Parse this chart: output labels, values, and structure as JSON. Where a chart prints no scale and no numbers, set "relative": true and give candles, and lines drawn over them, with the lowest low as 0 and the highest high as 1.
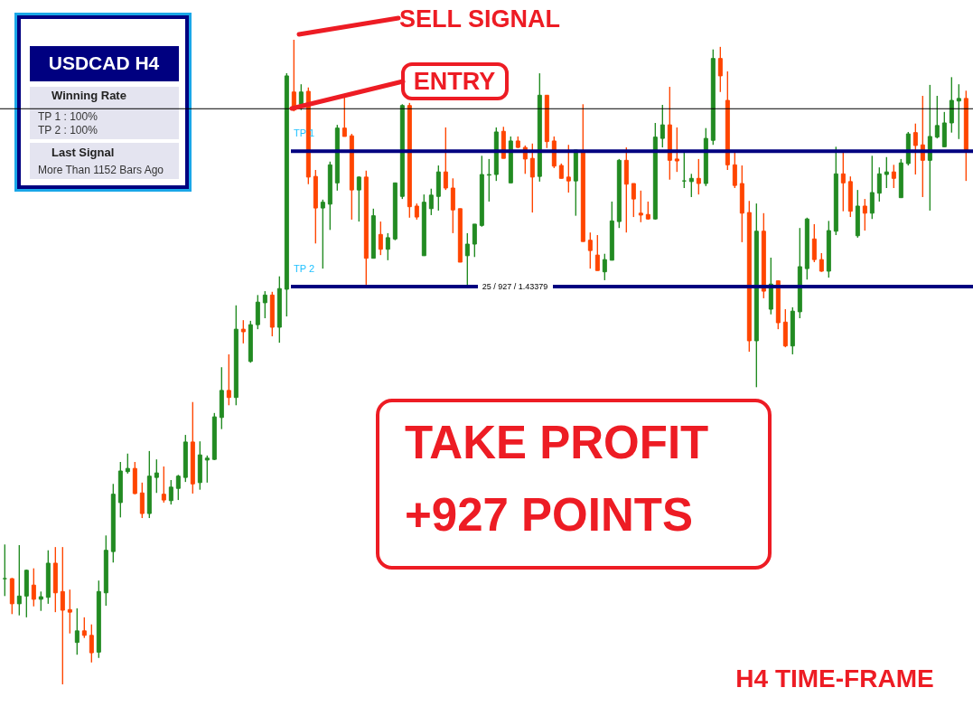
{
  "chart_data": {
    "type": "candlestick",
    "relative": true,
    "categories": [
      null,
      null,
      null,
      null,
      null,
      null,
      null,
      null,
      null,
      null,
      null,
      null,
      null,
      null,
      null,
      null,
      null,
      null,
      null,
      null,
      null,
      null,
      null,
      null,
      null,
      null,
      null,
      null,
      null,
      null,
      null,
      null,
      null,
      null,
      null,
      null,
      null,
      null,
      null,
      null,
      null,
      null,
      null,
      null,
      null,
      null,
      null,
      null,
      null,
      null,
      null,
      null,
      null,
      null,
      null,
      null,
      null,
      null,
      null,
      null,
      null,
      null,
      null,
      null,
      null,
      null,
      null,
      null,
      null,
      null,
      null,
      null,
      null,
      null,
      null,
      null,
      null,
      null,
      null,
      null,
      null,
      null,
      null,
      null,
      null,
      null,
      null,
      null,
      null,
      null,
      null,
      null,
      null,
      null,
      null,
      null,
      null,
      null,
      null,
      null,
      null,
      null,
      null,
      null,
      null,
      null,
      null,
      null,
      null,
      null,
      null,
      null,
      null,
      null,
      null,
      null,
      null,
      null,
      null,
      null,
      null,
      null,
      null,
      null,
      null,
      null,
      null,
      null,
      null,
      null,
      null,
      null,
      null,
      null
    ],
    "ohlc": [
      [
        0.164,
        0.217,
        0.137,
        0.164
      ],
      [
        0.164,
        0.165,
        0.109,
        0.125
      ],
      [
        0.125,
        0.216,
        0.107,
        0.137
      ],
      [
        0.137,
        0.178,
        0.104,
        0.177
      ],
      [
        0.154,
        0.18,
        0.121,
        0.132
      ],
      [
        0.132,
        0.144,
        0.114,
        0.136
      ],
      [
        0.135,
        0.208,
        0.125,
        0.188
      ],
      [
        0.188,
        0.213,
        0.112,
        0.142
      ],
      [
        0.144,
        0.213,
        0,
        0.115
      ],
      [
        0.116,
        0.147,
        0.079,
        0.112
      ],
      [
        0.065,
        0.118,
        0.046,
        0.083
      ],
      [
        0.083,
        0.104,
        0.072,
        0.076
      ],
      [
        0.076,
        0.093,
        0.034,
        0.049
      ],
      [
        0.05,
        0.161,
        0.041,
        0.144
      ],
      [
        0.142,
        0.231,
        0.122,
        0.208
      ],
      [
        0.206,
        0.311,
        0.189,
        0.295
      ],
      [
        0.282,
        0.345,
        0.259,
        0.331
      ],
      [
        0.33,
        0.358,
        0.327,
        0.335
      ],
      [
        0.335,
        0.345,
        0.295,
        0.296
      ],
      [
        0.297,
        0.313,
        0.258,
        0.265
      ],
      [
        0.265,
        0.362,
        0.258,
        0.323
      ],
      [
        0.321,
        0.349,
        0.297,
        0.328
      ],
      [
        0.295,
        0.338,
        0.282,
        0.286
      ],
      [
        0.285,
        0.317,
        0.279,
        0.306
      ],
      [
        0.304,
        0.325,
        0.286,
        0.323
      ],
      [
        0.321,
        0.387,
        0.314,
        0.376
      ],
      [
        0.376,
        0.438,
        0.296,
        0.311
      ],
      [
        0.313,
        0.377,
        0.302,
        0.356
      ],
      [
        0.348,
        0.355,
        0.313,
        0.351
      ],
      [
        0.349,
        0.421,
        0.348,
        0.415
      ],
      [
        0.414,
        0.492,
        0.396,
        0.456
      ],
      [
        0.456,
        0.512,
        0.433,
        0.445
      ],
      [
        0.445,
        0.588,
        0.433,
        0.551
      ],
      [
        0.551,
        0.565,
        0.529,
        0.547
      ],
      [
        0.501,
        0.564,
        0.499,
        0.558
      ],
      [
        0.558,
        0.604,
        0.551,
        0.593
      ],
      [
        0.592,
        0.61,
        0.568,
        0.604
      ],
      [
        0.604,
        0.609,
        0.54,
        0.554
      ],
      [
        0.554,
        0.633,
        0.53,
        0.614
      ],
      [
        0.613,
        0.948,
        0.571,
        0.944
      ],
      [
        0.919,
        1,
        0.889,
        0.891
      ],
      [
        0.9,
        0.931,
        0.891,
        0.919
      ],
      [
        0.92,
        0.926,
        0.776,
        0.787
      ],
      [
        0.788,
        0.798,
        0.684,
        0.739
      ],
      [
        0.739,
        0.752,
        0.645,
        0.748
      ],
      [
        0.745,
        0.811,
        0.705,
        0.806
      ],
      [
        0.778,
        0.868,
        0.766,
        0.863
      ],
      [
        0.863,
        0.913,
        0.85,
        0.85
      ],
      [
        0.851,
        0.854,
        0.721,
        0.767
      ],
      [
        0.767,
        0.788,
        0.718,
        0.787
      ],
      [
        0.787,
        0.797,
        0.62,
        0.661
      ],
      [
        0.661,
        0.738,
        0.661,
        0.727
      ],
      [
        0.698,
        0.718,
        0.666,
        0.675
      ],
      [
        0.675,
        0.7,
        0.658,
        0.693
      ],
      [
        0.691,
        0.778,
        0.689,
        0.778
      ],
      [
        0.757,
        0.9,
        0.753,
        0.898
      ],
      [
        0.898,
        0.902,
        0.724,
        0.741
      ],
      [
        0.742,
        0.746,
        0.721,
        0.725
      ],
      [
        0.665,
        0.76,
        0.665,
        0.748
      ],
      [
        0.738,
        0.769,
        0.728,
        0.759
      ],
      [
        0.757,
        0.805,
        0.735,
        0.795
      ],
      [
        0.795,
        0.864,
        0.767,
        0.77
      ],
      [
        0.77,
        0.785,
        0.7,
        0.736
      ],
      [
        0.738,
        0.738,
        0.655,
        0.655
      ],
      [
        0.665,
        0.7,
        0.617,
        0.683
      ],
      [
        0.683,
        0.714,
        0.663,
        0.714
      ],
      [
        0.712,
        0.82,
        0.71,
        0.791
      ],
      [
        0.79,
        0.815,
        0.749,
        0.791
      ],
      [
        0.791,
        0.864,
        0.781,
        0.857
      ],
      [
        0.858,
        0.865,
        0.816,
        0.816
      ],
      [
        0.778,
        0.85,
        0.778,
        0.843
      ],
      [
        0.843,
        0.85,
        0.832,
        0.833
      ],
      [
        0.833,
        0.836,
        0.792,
        0.815
      ],
      [
        0.816,
        0.839,
        0.732,
        0.787
      ],
      [
        0.788,
        0.948,
        0.78,
        0.914
      ],
      [
        0.914,
        0.914,
        0.832,
        0.842
      ],
      [
        0.843,
        0.85,
        0.801,
        0.804
      ],
      [
        0.805,
        0.808,
        0.785,
        0.785
      ],
      [
        0.787,
        0.837,
        0.763,
        0.781
      ],
      [
        0.781,
        0.829,
        0.727,
        0.829
      ],
      [
        0.825,
        0.9,
        0.687,
        0.687
      ],
      [
        0.689,
        0.701,
        0.645,
        0.673
      ],
      [
        0.666,
        0.697,
        0.642,
        0.642
      ],
      [
        0.64,
        0.668,
        0.627,
        0.659
      ],
      [
        0.658,
        0.749,
        0.658,
        0.719
      ],
      [
        0.718,
        0.815,
        0.708,
        0.813
      ],
      [
        0.813,
        0.833,
        0.701,
        0.776
      ],
      [
        0.777,
        0.777,
        0.725,
        0.753
      ],
      [
        0.731,
        0.766,
        0.717,
        0.728
      ],
      [
        0.729,
        0.749,
        0.721,
        0.722
      ],
      [
        0.722,
        0.871,
        0.721,
        0.849
      ],
      [
        0.847,
        0.899,
        0.833,
        0.868
      ],
      [
        0.868,
        0.927,
        0.783,
        0.813
      ],
      [
        0.815,
        0.864,
        0.795,
        0.812
      ],
      [
        0.781,
        0.825,
        0.77,
        0.781
      ],
      [
        0.78,
        0.792,
        0.756,
        0.785
      ],
      [
        0.785,
        0.815,
        0.76,
        0.777
      ],
      [
        0.777,
        0.863,
        0.773,
        0.847
      ],
      [
        0.844,
        0.985,
        0.837,
        0.971
      ],
      [
        0.971,
        0.989,
        0.919,
        0.944
      ],
      [
        0.906,
        0.951,
        0.798,
        0.806
      ],
      [
        0.806,
        0.825,
        0.77,
        0.774
      ],
      [
        0.777,
        0.805,
        0.686,
        0.731
      ],
      [
        0.732,
        0.75,
        0.516,
        0.533
      ],
      [
        0.533,
        0.746,
        0.461,
        0.703
      ],
      [
        0.703,
        0.731,
        0.599,
        0.61
      ],
      [
        0.582,
        0.662,
        0.574,
        0.621
      ],
      [
        0.626,
        0.626,
        0.551,
        0.561
      ],
      [
        0.562,
        0.582,
        0.523,
        0.525
      ],
      [
        0.525,
        0.585,
        0.512,
        0.579
      ],
      [
        0.578,
        0.708,
        0.568,
        0.648
      ],
      [
        0.645,
        0.724,
        0.628,
        0.722
      ],
      [
        0.691,
        0.714,
        0.655,
        0.659
      ],
      [
        0.659,
        0.669,
        0.64,
        0.641
      ],
      [
        0.641,
        0.719,
        0.631,
        0.704
      ],
      [
        0.703,
        0.834,
        0.697,
        0.792
      ],
      [
        0.792,
        0.825,
        0.734,
        0.778
      ],
      [
        0.78,
        0.788,
        0.725,
        0.734
      ],
      [
        0.696,
        0.767,
        0.693,
        0.742
      ],
      [
        0.742,
        0.753,
        0.704,
        0.731
      ],
      [
        0.731,
        0.82,
        0.722,
        0.763
      ],
      [
        0.762,
        0.802,
        0.749,
        0.792
      ],
      [
        0.791,
        0.818,
        0.77,
        0.795
      ],
      [
        0.795,
        0.806,
        0.77,
        0.785
      ],
      [
        0.755,
        0.815,
        0.755,
        0.809
      ],
      [
        0.808,
        0.857,
        0.805,
        0.854
      ],
      [
        0.856,
        0.87,
        0.791,
        0.836
      ],
      [
        0.837,
        0.913,
        0.756,
        0.813
      ],
      [
        0.813,
        0.93,
        0.735,
        0.85
      ],
      [
        0.849,
        0.913,
        0.847,
        0.867
      ],
      [
        0.834,
        0.888,
        0.834,
        0.871
      ],
      [
        0.871,
        0.942,
        0.856,
        0.906
      ],
      [
        0.905,
        0.931,
        0.846,
        0.909
      ],
      [
        0.909,
        0.921,
        0.781,
        0.827
      ]
    ],
    "colors": [
      "#228b22",
      "#ff4500",
      "#228b22",
      "#228b22",
      "#ff4500",
      "#228b22",
      "#228b22",
      "#ff4500",
      "#ff4500",
      "#ff4500",
      "#228b22",
      "#ff4500",
      "#ff4500",
      "#228b22",
      "#228b22",
      "#228b22",
      "#228b22",
      "#228b22",
      "#ff4500",
      "#ff4500",
      "#228b22",
      "#228b22",
      "#ff4500",
      "#228b22",
      "#228b22",
      "#228b22",
      "#ff4500",
      "#228b22",
      "#228b22",
      "#228b22",
      "#228b22",
      "#ff4500",
      "#228b22",
      "#ff4500",
      "#228b22",
      "#228b22",
      "#228b22",
      "#ff4500",
      "#228b22",
      "#228b22",
      "#ff4500",
      "#228b22",
      "#ff4500",
      "#ff4500",
      "#228b22",
      "#228b22",
      "#228b22",
      "#ff4500",
      "#ff4500",
      "#228b22",
      "#ff4500",
      "#228b22",
      "#ff4500",
      "#228b22",
      "#228b22",
      "#228b22",
      "#ff4500",
      "#ff4500",
      "#228b22",
      "#228b22",
      "#228b22",
      "#ff4500",
      "#ff4500",
      "#ff4500",
      "#228b22",
      "#228b22",
      "#228b22",
      "#228b22",
      "#228b22",
      "#ff4500",
      "#228b22",
      "#ff4500",
      "#ff4500",
      "#ff4500",
      "#228b22",
      "#ff4500",
      "#ff4500",
      "#ff4500",
      "#ff4500",
      "#228b22",
      "#ff4500",
      "#ff4500",
      "#ff4500",
      "#228b22",
      "#228b22",
      "#228b22",
      "#ff4500",
      "#ff4500",
      "#ff4500",
      "#ff4500",
      "#228b22",
      "#228b22",
      "#ff4500",
      "#ff4500",
      "#228b22",
      "#228b22",
      "#ff4500",
      "#228b22",
      "#228b22",
      "#ff4500",
      "#ff4500",
      "#ff4500",
      "#ff4500",
      "#ff4500",
      "#228b22",
      "#ff4500",
      "#228b22",
      "#ff4500",
      "#ff4500",
      "#228b22",
      "#228b22",
      "#228b22",
      "#ff4500",
      "#ff4500",
      "#228b22",
      "#228b22",
      "#ff4500",
      "#ff4500",
      "#228b22",
      "#ff4500",
      "#228b22",
      "#228b22",
      "#228b22",
      "#ff4500",
      "#228b22",
      "#228b22",
      "#ff4500",
      "#ff4500",
      "#228b22",
      "#228b22",
      "#228b22",
      "#228b22",
      "#228b22",
      "#ff4500"
    ],
    "ref_lines": [
      {
        "axis": "y",
        "value": 0.893,
        "color": "#000000"
      },
      {
        "axis": "y",
        "value": 0.827,
        "label": "TP 1",
        "color": "#000080"
      },
      {
        "axis": "y",
        "value": 0.617,
        "label": "TP 2",
        "color": "#000080"
      }
    ],
    "annotations": [
      "SELL SIGNAL",
      "ENTRY",
      "TAKE PROFIT\n+927 POINTS",
      "H4 TIME-FRAME",
      "USDCAD H4",
      "Winning Rate",
      "TP 1 : 100%",
      "TP 2 : 100%",
      "Last Signal",
      "More Than 1152 Bars Ago",
      {
        "text": "25 / 927 / 1.43379",
        "y": 0.617
      }
    ]
  }
}
